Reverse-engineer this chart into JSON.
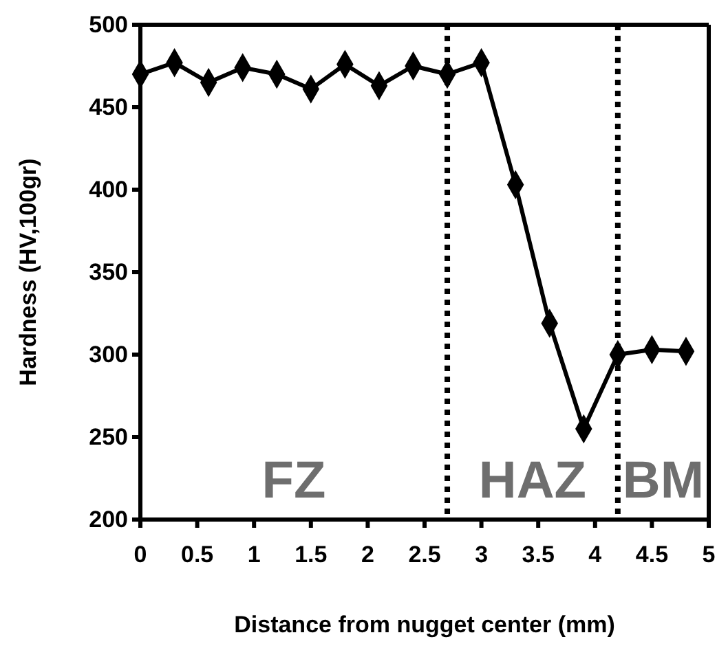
{
  "chart_data": {
    "type": "line",
    "xlabel": "Distance from nugget center (mm)",
    "ylabel": "Hardness (HV,100gr)",
    "x": [
      0,
      0.3,
      0.6,
      0.9,
      1.2,
      1.5,
      1.8,
      2.1,
      2.4,
      2.7,
      3.0,
      3.3,
      3.6,
      3.9,
      4.2,
      4.5,
      4.8
    ],
    "series": [
      {
        "color": "#000000",
        "values": [
          470,
          477,
          465,
          474,
          470,
          461,
          476,
          463,
          475,
          470,
          477,
          403,
          319,
          255,
          300,
          303,
          302
        ]
      }
    ],
    "xlim": [
      0,
      5
    ],
    "xticks": [
      0,
      0.5,
      1,
      1.5,
      2,
      2.5,
      3,
      3.5,
      4,
      4.5,
      5
    ],
    "ylim": [
      200,
      500
    ],
    "yticks": [
      200,
      250,
      300,
      350,
      400,
      450,
      500
    ],
    "marker": "diamond",
    "line_style": "solid",
    "grid": false,
    "ref_lines": [
      {
        "axis": "x",
        "value": 2.7,
        "line_style": "dotted",
        "color": "#000000"
      },
      {
        "axis": "x",
        "value": 4.2,
        "line_style": "dotted",
        "color": "#000000"
      }
    ],
    "annotations": [
      "FZ",
      "HAZ",
      "BM"
    ]
  }
}
